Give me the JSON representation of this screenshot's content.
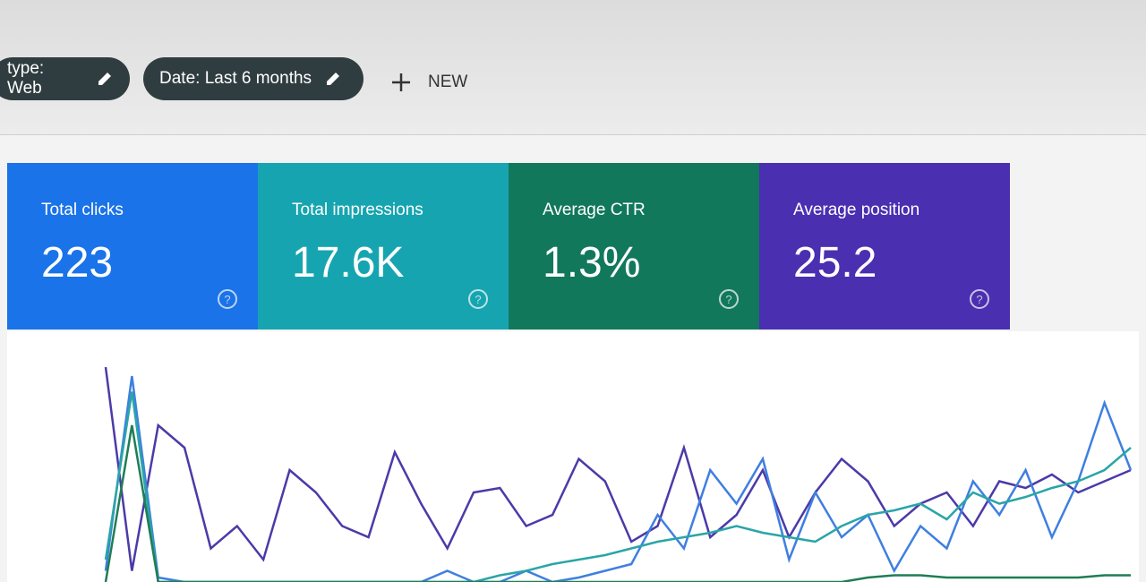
{
  "filters": [
    {
      "label": "type: Web"
    },
    {
      "label": "Date: Last 6 months"
    }
  ],
  "new_button": {
    "label": "NEW"
  },
  "metrics": [
    {
      "label": "Total clicks",
      "value": "223",
      "color": "#1a73e8"
    },
    {
      "label": "Total impressions",
      "value": "17.6K",
      "color": "#16a5b0"
    },
    {
      "label": "Average CTR",
      "value": "1.3%",
      "color": "#12785c"
    },
    {
      "label": "Average position",
      "value": "25.2",
      "color": "#4a2fb0"
    }
  ],
  "chart_data": {
    "type": "line",
    "ylim": [
      0,
      100
    ],
    "series": [
      {
        "name": "Average position",
        "color": "#4b3aa8",
        "values": [
          96,
          5,
          70,
          60,
          15,
          25,
          10,
          50,
          40,
          25,
          20,
          58,
          35,
          15,
          40,
          42,
          25,
          30,
          55,
          45,
          18,
          25,
          60,
          20,
          30,
          50,
          20,
          40,
          55,
          45,
          25,
          35,
          40,
          25,
          45,
          42,
          48,
          40,
          45,
          50
        ]
      },
      {
        "name": "Total clicks",
        "color": "#3f7fe0",
        "values": [
          5,
          92,
          2,
          0,
          0,
          0,
          0,
          0,
          0,
          0,
          0,
          0,
          0,
          5,
          0,
          0,
          5,
          0,
          2,
          5,
          8,
          30,
          15,
          50,
          35,
          55,
          10,
          40,
          20,
          30,
          5,
          25,
          15,
          45,
          30,
          50,
          20,
          45,
          80,
          50
        ]
      },
      {
        "name": "Total impressions",
        "color": "#2aa5a8",
        "values": [
          10,
          85,
          0,
          0,
          0,
          0,
          0,
          0,
          0,
          0,
          0,
          0,
          0,
          0,
          0,
          3,
          5,
          8,
          10,
          12,
          15,
          18,
          20,
          22,
          25,
          22,
          20,
          18,
          25,
          30,
          32,
          35,
          28,
          40,
          35,
          38,
          42,
          45,
          50,
          60
        ]
      },
      {
        "name": "Average CTR",
        "color": "#1f7d55",
        "values": [
          0,
          70,
          0,
          0,
          0,
          0,
          0,
          0,
          0,
          0,
          0,
          0,
          0,
          0,
          0,
          0,
          0,
          0,
          0,
          0,
          0,
          0,
          0,
          0,
          0,
          0,
          0,
          0,
          0,
          2,
          3,
          3,
          2,
          2,
          2,
          2,
          2,
          2,
          3,
          3
        ]
      }
    ]
  }
}
